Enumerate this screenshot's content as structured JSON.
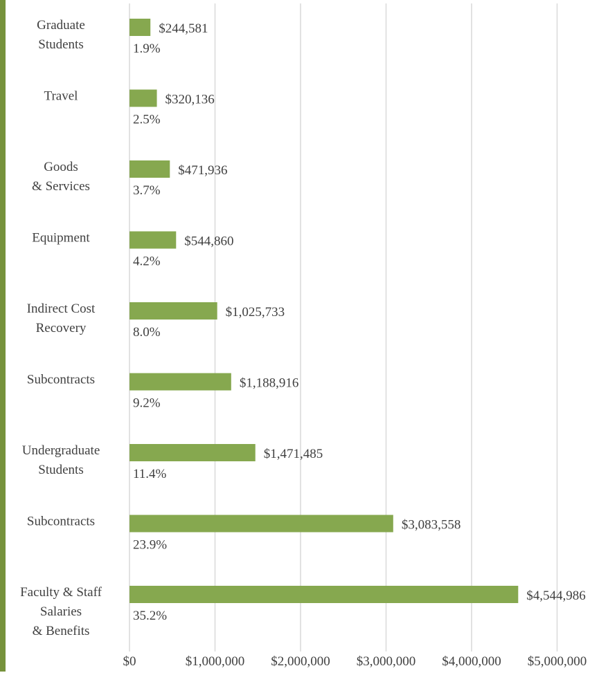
{
  "chart_data": {
    "type": "bar",
    "orientation": "horizontal",
    "title": "",
    "xlabel": "",
    "ylabel": "",
    "xlim": [
      0,
      5000000
    ],
    "x_ticks": [
      "$0",
      "$1,000,000",
      "$2,000,000",
      "$3,000,000",
      "$4,000,000",
      "$5,000,000"
    ],
    "grid": "vertical",
    "bar_color": "#86a84f",
    "bars": [
      {
        "label": [
          "Graduate",
          "Students"
        ],
        "value": 244581,
        "value_label": "$244,581",
        "percent": "1.9%"
      },
      {
        "label": [
          "Travel"
        ],
        "value": 320136,
        "value_label": "$320,136",
        "percent": "2.5%"
      },
      {
        "label": [
          "Goods",
          "& Services"
        ],
        "value": 471936,
        "value_label": "$471,936",
        "percent": "3.7%"
      },
      {
        "label": [
          "Equipment"
        ],
        "value": 544860,
        "value_label": "$544,860",
        "percent": "4.2%"
      },
      {
        "label": [
          "Indirect Cost",
          "Recovery"
        ],
        "value": 1025733,
        "value_label": "$1,025,733",
        "percent": "8.0%"
      },
      {
        "label": [
          "Subcontracts"
        ],
        "value": 1188916,
        "value_label": "$1,188,916",
        "percent": "9.2%"
      },
      {
        "label": [
          "Undergraduate",
          "Students"
        ],
        "value": 1471485,
        "value_label": "$1,471,485",
        "percent": "11.4%"
      },
      {
        "label": [
          "Subcontracts"
        ],
        "value": 3083558,
        "value_label": "$3,083,558",
        "percent": "23.9%"
      },
      {
        "label": [
          "Faculty & Staff",
          "Salaries",
          "& Benefits"
        ],
        "value": 4544986,
        "value_label": "$4,544,986",
        "percent": "35.2%"
      }
    ]
  }
}
